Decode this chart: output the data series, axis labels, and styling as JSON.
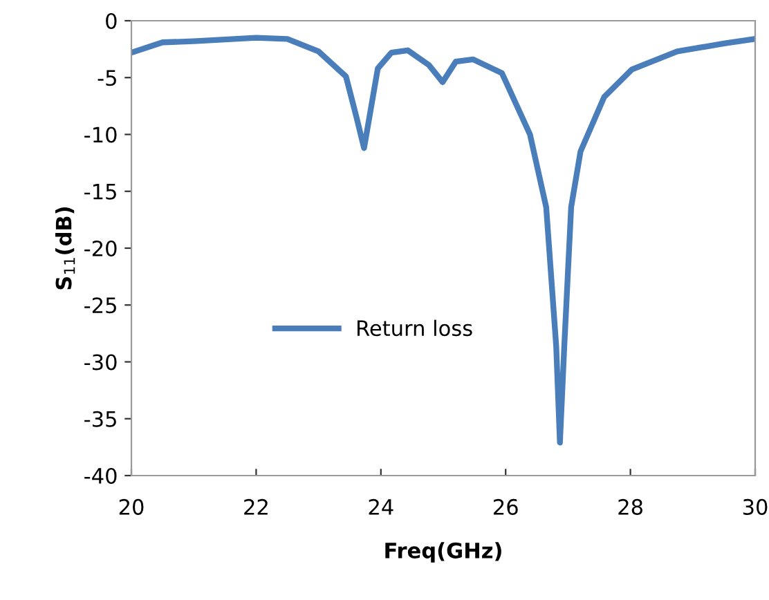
{
  "chart_data": {
    "type": "line",
    "xlabel": "Freq(GHz)",
    "ylabel": "S$_{11}$(dB)",
    "xlim": [
      20,
      30
    ],
    "xticks": [
      20,
      22,
      24,
      26,
      28,
      30
    ],
    "ylim": [
      -40,
      0
    ],
    "yticks": [
      -40,
      -35,
      -30,
      -25,
      -20,
      -15,
      -10,
      -5,
      0
    ],
    "grid": false,
    "legend": "left",
    "marker": "none",
    "line_style": "solid",
    "series": [
      {
        "name": "Return loss",
        "color": "#4a7ebb",
        "x": [
          20,
          20.5,
          21,
          22,
          22.5,
          23.0,
          23.3,
          23.44,
          23.6,
          23.73,
          23.95,
          24.17,
          24.43,
          24.77,
          24.99,
          25.2,
          25.48,
          25.94,
          26.39,
          26.65,
          26.81,
          26.87,
          26.94,
          27.05,
          27.2,
          27.58,
          28.02,
          28.75,
          29.5,
          30
        ],
        "values": [
          -2.8,
          -1.9,
          -1.8,
          -1.5,
          -1.6,
          -2.7,
          -4.2,
          -4.9,
          -8.3,
          -11.2,
          -4.2,
          -2.8,
          -2.6,
          -3.9,
          -5.4,
          -3.6,
          -3.4,
          -4.6,
          -10,
          -16.4,
          -28.6,
          -37.1,
          -28.6,
          -16.4,
          -11.5,
          -6.7,
          -4.3,
          -2.7,
          -2.0,
          -1.6
        ]
      }
    ]
  }
}
